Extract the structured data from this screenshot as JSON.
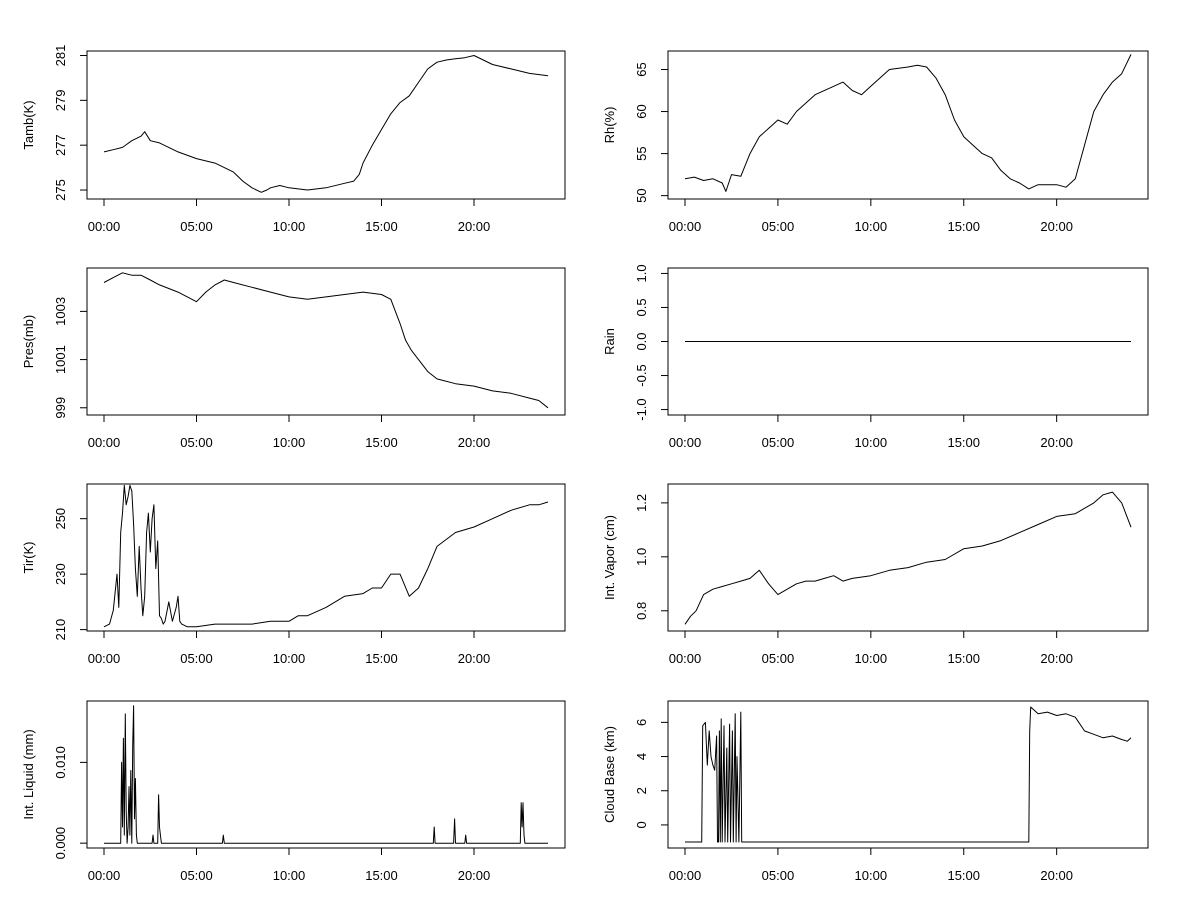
{
  "chart_data": [
    {
      "type": "line",
      "ylabel": "Tamb(K)",
      "xlim": [
        0,
        24
      ],
      "ylim": [
        274.6,
        281.2
      ],
      "x_ticks": [
        "00:00",
        "05:00",
        "10:00",
        "15:00",
        "20:00"
      ],
      "y_ticks": [
        "275",
        "277",
        "279",
        "281"
      ],
      "series": [
        {
          "x": [
            0,
            0.5,
            1,
            1.5,
            2,
            2.2,
            2.5,
            3,
            4,
            5,
            6,
            7,
            7.5,
            8,
            8.5,
            8.8,
            9,
            9.5,
            10,
            11,
            12,
            13,
            13.5,
            13.8,
            14,
            14.5,
            15,
            15.5,
            16,
            16.5,
            17,
            17.5,
            18,
            18.5,
            19,
            19.5,
            20,
            20.5,
            21,
            22,
            23,
            24
          ],
          "y": [
            276.7,
            276.8,
            276.9,
            277.2,
            277.4,
            277.6,
            277.2,
            277.1,
            276.7,
            276.4,
            276.2,
            275.8,
            275.4,
            275.1,
            274.9,
            275.0,
            275.1,
            275.2,
            275.1,
            275.0,
            275.1,
            275.3,
            275.4,
            275.7,
            276.2,
            277.0,
            277.7,
            278.4,
            278.9,
            279.2,
            279.8,
            280.4,
            280.7,
            280.8,
            280.85,
            280.9,
            281.0,
            280.8,
            280.6,
            280.4,
            280.2,
            280.1
          ]
        }
      ]
    },
    {
      "type": "line",
      "ylabel": "Rh(%)",
      "xlim": [
        0,
        24
      ],
      "ylim": [
        49.6,
        67.2
      ],
      "x_ticks": [
        "00:00",
        "05:00",
        "10:00",
        "15:00",
        "20:00"
      ],
      "y_ticks": [
        "50",
        "55",
        "60",
        "65"
      ],
      "series": [
        {
          "x": [
            0,
            0.5,
            1,
            1.5,
            2,
            2.2,
            2.5,
            3,
            3.5,
            4,
            4.5,
            5,
            5.5,
            6,
            7,
            8,
            8.5,
            9,
            9.5,
            10,
            10.5,
            11,
            12,
            12.5,
            13,
            13.5,
            14,
            14.5,
            15,
            15.5,
            16,
            16.5,
            17,
            17.5,
            18,
            18.5,
            19,
            20,
            20.5,
            21,
            21.5,
            22,
            22.5,
            23,
            23.5,
            24
          ],
          "y": [
            52,
            52.2,
            51.8,
            52,
            51.5,
            50.5,
            52.5,
            52.3,
            55,
            57,
            58,
            59,
            58.5,
            60,
            62,
            63,
            63.5,
            62.5,
            62,
            63,
            64,
            65,
            65.3,
            65.5,
            65.3,
            64,
            62,
            59,
            57,
            56,
            55,
            54.5,
            53,
            52,
            51.5,
            50.8,
            51.3,
            51.3,
            51,
            52,
            56,
            60,
            62,
            63.5,
            64.5,
            66.8
          ]
        }
      ]
    },
    {
      "type": "line",
      "ylabel": "Pres(mb)",
      "xlim": [
        0,
        24
      ],
      "ylim": [
        998.7,
        1004.8
      ],
      "x_ticks": [
        "00:00",
        "05:00",
        "10:00",
        "15:00",
        "20:00"
      ],
      "y_ticks": [
        "999",
        "1001",
        "1003"
      ],
      "series": [
        {
          "x": [
            0,
            0.5,
            1,
            1.5,
            2,
            2.5,
            3,
            4,
            5,
            5.5,
            6,
            6.5,
            7,
            8,
            9,
            10,
            11,
            12,
            13,
            14,
            15,
            15.5,
            16,
            16.3,
            16.6,
            17,
            17.5,
            18,
            19,
            20,
            21,
            22,
            23,
            23.5,
            24
          ],
          "y": [
            1004.2,
            1004.4,
            1004.6,
            1004.5,
            1004.5,
            1004.3,
            1004.1,
            1003.8,
            1003.4,
            1003.8,
            1004.1,
            1004.3,
            1004.2,
            1004.0,
            1003.8,
            1003.6,
            1003.5,
            1003.6,
            1003.7,
            1003.8,
            1003.7,
            1003.5,
            1002.5,
            1001.8,
            1001.4,
            1001.0,
            1000.5,
            1000.2,
            1000.0,
            999.9,
            999.7,
            999.6,
            999.4,
            999.3,
            999.0
          ]
        }
      ]
    },
    {
      "type": "line",
      "ylabel": "Rain",
      "xlim": [
        0,
        24
      ],
      "ylim": [
        -1.08,
        1.08
      ],
      "x_ticks": [
        "00:00",
        "05:00",
        "10:00",
        "15:00",
        "20:00"
      ],
      "y_ticks": [
        "-1.0",
        "-0.5",
        "0.0",
        "0.5",
        "1.0"
      ],
      "series": [
        {
          "x": [
            0,
            24
          ],
          "y": [
            0,
            0
          ]
        }
      ]
    },
    {
      "type": "line",
      "ylabel": "Tir(K)",
      "xlim": [
        0,
        24
      ],
      "ylim": [
        209.5,
        262.5
      ],
      "x_ticks": [
        "00:00",
        "05:00",
        "10:00",
        "15:00",
        "20:00"
      ],
      "y_ticks": [
        "210",
        "230",
        "250"
      ],
      "series": [
        {
          "x": [
            0,
            0.3,
            0.5,
            0.7,
            0.8,
            0.9,
            1.0,
            1.1,
            1.2,
            1.3,
            1.4,
            1.5,
            1.6,
            1.7,
            1.8,
            1.9,
            2.0,
            2.1,
            2.2,
            2.3,
            2.4,
            2.5,
            2.6,
            2.7,
            2.8,
            2.9,
            3.0,
            3.1,
            3.2,
            3.3,
            3.5,
            3.7,
            3.9,
            4.0,
            4.1,
            4.2,
            4.5,
            5,
            6,
            7,
            8,
            9,
            10,
            10.5,
            11,
            12,
            13,
            14,
            14.5,
            15,
            15.5,
            16,
            16.5,
            17,
            17.5,
            18,
            19,
            20,
            21,
            22,
            23,
            23.5,
            24
          ],
          "y": [
            211,
            212,
            217,
            230,
            218,
            245,
            252,
            262,
            255,
            258,
            262,
            260,
            248,
            232,
            222,
            240,
            225,
            215,
            222,
            245,
            252,
            238,
            250,
            255,
            232,
            242,
            215,
            214,
            212,
            213,
            220,
            213,
            218,
            222,
            213,
            212,
            211,
            211,
            212,
            212,
            212,
            213,
            213,
            215,
            215,
            218,
            222,
            223,
            225,
            225,
            230,
            230,
            222,
            225,
            232,
            240,
            245,
            247,
            250,
            253,
            255,
            255,
            256
          ]
        }
      ]
    },
    {
      "type": "line",
      "ylabel": "Int. Vapor (cm)",
      "xlim": [
        0,
        24
      ],
      "ylim": [
        0.725,
        1.27
      ],
      "x_ticks": [
        "00:00",
        "05:00",
        "10:00",
        "15:00",
        "20:00"
      ],
      "y_ticks": [
        "0.8",
        "1.0",
        "1.2"
      ],
      "series": [
        {
          "x": [
            0,
            0.3,
            0.6,
            1,
            1.5,
            2,
            2.5,
            3,
            3.5,
            4,
            4.5,
            5,
            5.5,
            6,
            6.5,
            7,
            7.5,
            8,
            8.5,
            9,
            10,
            11,
            12,
            13,
            14,
            15,
            16,
            17,
            18,
            19,
            20,
            21,
            22,
            22.5,
            23,
            23.5,
            24
          ],
          "y": [
            0.75,
            0.78,
            0.8,
            0.86,
            0.88,
            0.89,
            0.9,
            0.91,
            0.92,
            0.95,
            0.9,
            0.86,
            0.88,
            0.9,
            0.91,
            0.91,
            0.92,
            0.93,
            0.91,
            0.92,
            0.93,
            0.95,
            0.96,
            0.98,
            0.99,
            1.03,
            1.04,
            1.06,
            1.09,
            1.12,
            1.15,
            1.16,
            1.2,
            1.23,
            1.24,
            1.2,
            1.11
          ]
        }
      ]
    },
    {
      "type": "line",
      "ylabel": "Int. Liquid (mm)",
      "xlim": [
        0,
        24
      ],
      "ylim": [
        -0.0006,
        0.0176
      ],
      "x_ticks": [
        "00:00",
        "05:00",
        "10:00",
        "15:00",
        "20:00"
      ],
      "y_ticks": [
        "0.000",
        "0.010"
      ],
      "series": [
        {
          "x": [
            0,
            0.9,
            0.95,
            1.0,
            1.05,
            1.1,
            1.15,
            1.2,
            1.25,
            1.3,
            1.35,
            1.4,
            1.45,
            1.5,
            1.55,
            1.6,
            1.65,
            1.7,
            1.75,
            1.8,
            2.0,
            2.6,
            2.65,
            2.7,
            2.9,
            2.95,
            3.0,
            3.05,
            3.1,
            6.4,
            6.45,
            6.5,
            17.8,
            17.85,
            17.9,
            18.9,
            18.95,
            19.0,
            19.5,
            19.55,
            19.6,
            22.5,
            22.55,
            22.6,
            22.65,
            22.7,
            22.75,
            24
          ],
          "y": [
            0,
            0,
            0.01,
            0.002,
            0.013,
            0.001,
            0.016,
            0.004,
            0,
            0.002,
            0.007,
            0.001,
            0.009,
            0,
            0.012,
            0.017,
            0.003,
            0.008,
            0.001,
            0,
            0,
            0,
            0.001,
            0,
            0,
            0.006,
            0.002,
            0.001,
            0,
            0,
            0.001,
            0,
            0,
            0.002,
            0,
            0,
            0.003,
            0,
            0,
            0.001,
            0,
            0,
            0.005,
            0.002,
            0.005,
            0.001,
            0,
            0
          ]
        }
      ]
    },
    {
      "type": "line",
      "ylabel": "Cloud Base (km)",
      "xlim": [
        0,
        24
      ],
      "ylim": [
        -1.35,
        7.25
      ],
      "x_ticks": [
        "00:00",
        "05:00",
        "10:00",
        "15:00",
        "20:00"
      ],
      "y_ticks": [
        "0",
        "2",
        "4",
        "6"
      ],
      "series": [
        {
          "x": [
            0,
            0.9,
            0.95,
            1.1,
            1.2,
            1.3,
            1.4,
            1.5,
            1.6,
            1.7,
            1.75,
            1.8,
            1.85,
            1.9,
            1.95,
            2.0,
            2.1,
            2.15,
            2.25,
            2.3,
            2.4,
            2.45,
            2.55,
            2.6,
            2.7,
            2.75,
            2.8,
            2.9,
            3.0,
            3.05,
            3.1,
            18.5,
            18.55,
            18.6,
            18.8,
            19.0,
            19.5,
            20.0,
            20.5,
            21.0,
            21.5,
            22.0,
            22.5,
            23.0,
            23.5,
            23.8,
            24
          ],
          "y": [
            -1,
            -1,
            5.8,
            6.0,
            3.5,
            5.5,
            4.0,
            3.5,
            3.2,
            5.2,
            -1,
            -1,
            5.5,
            -1,
            6.2,
            -1,
            5.8,
            -1,
            4.5,
            -1,
            5.9,
            -1,
            5.5,
            -1,
            6.5,
            -1,
            4.0,
            -1,
            6.6,
            -1,
            -1,
            -1,
            5.5,
            6.9,
            6.7,
            6.5,
            6.6,
            6.4,
            6.5,
            6.3,
            5.5,
            5.3,
            5.1,
            5.2,
            5.0,
            4.9,
            5.1
          ]
        }
      ]
    }
  ]
}
